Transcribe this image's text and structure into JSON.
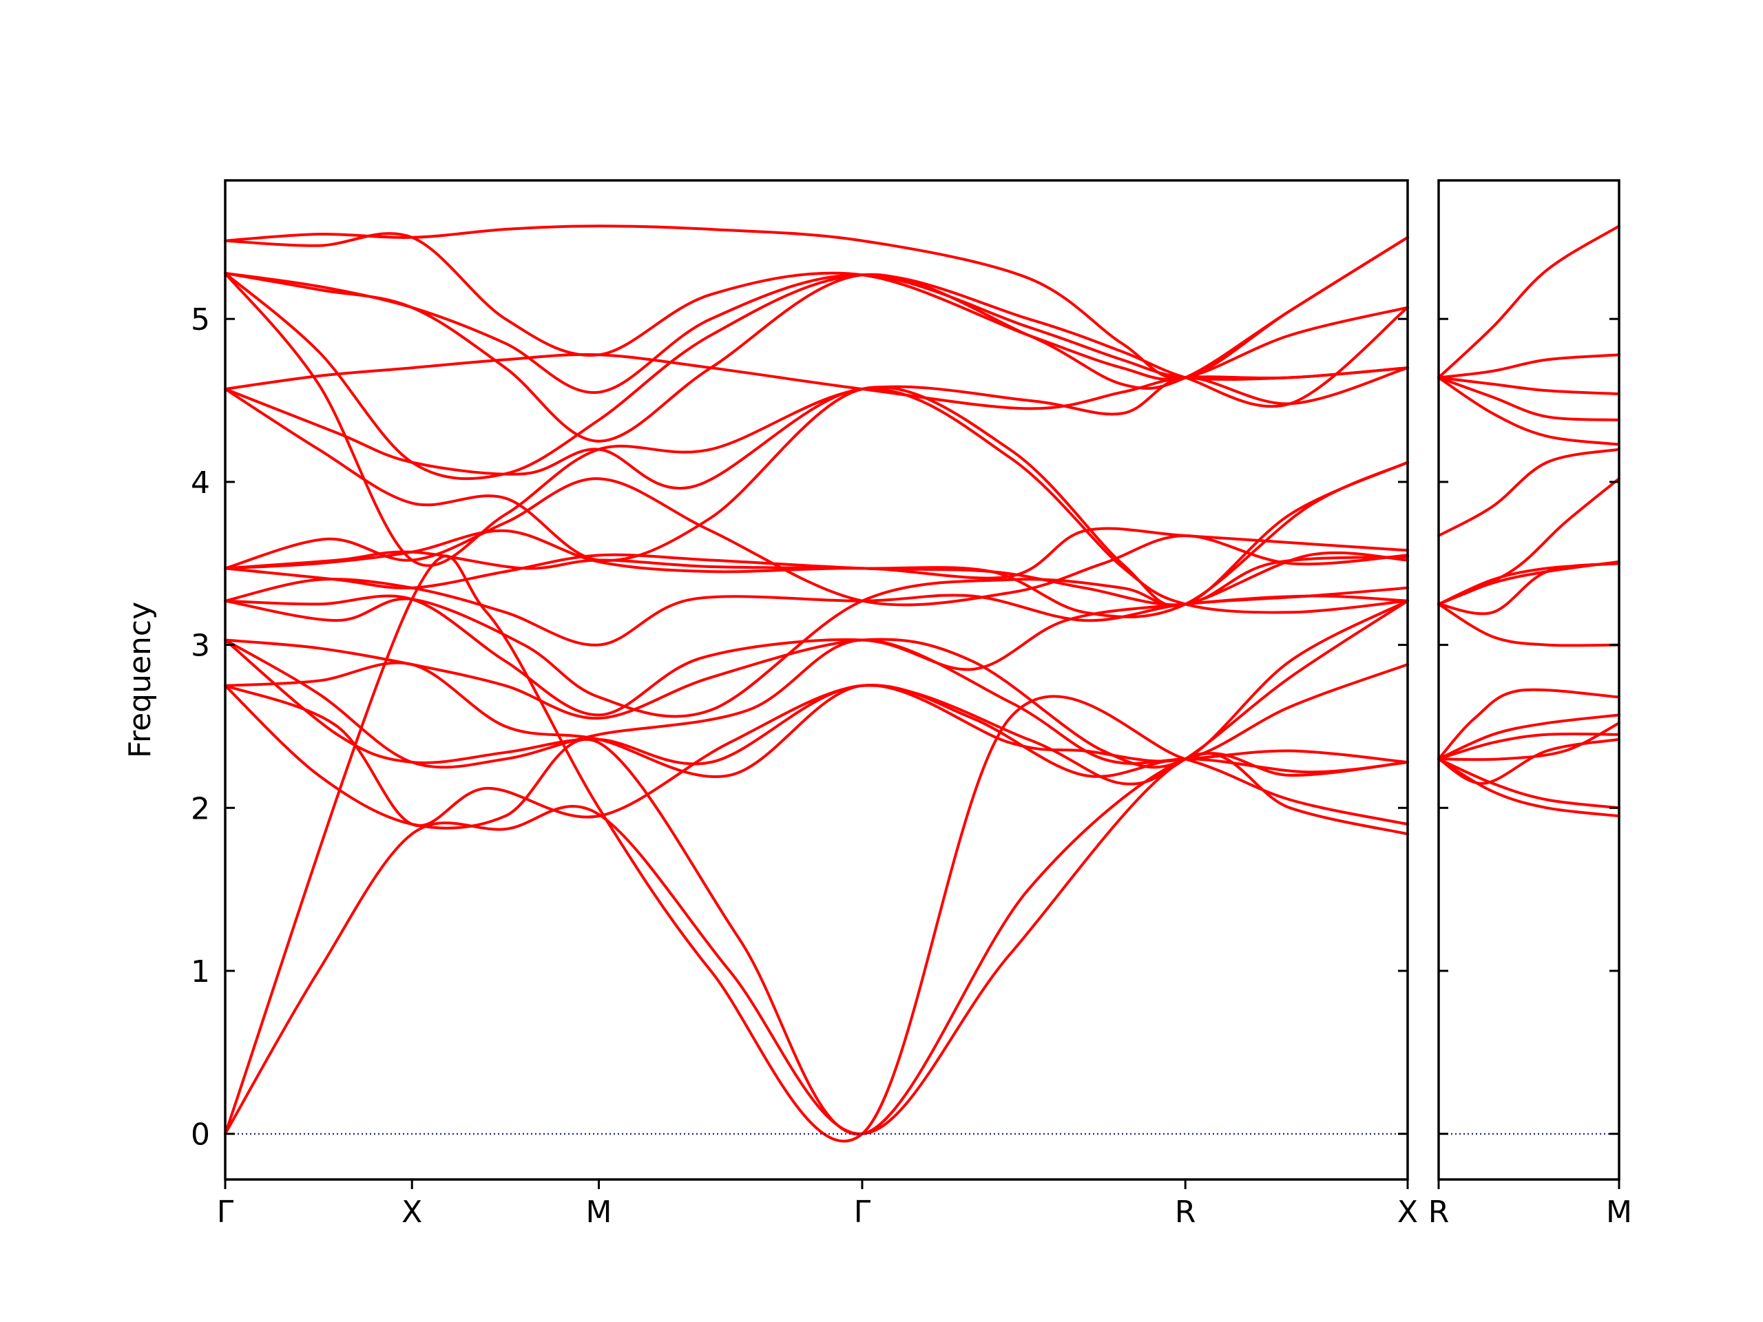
{
  "chart_data": {
    "type": "line",
    "title": "",
    "ylabel": "Frequency",
    "ylim": [
      -0.28,
      5.85
    ],
    "yticks": [
      0,
      1,
      2,
      3,
      4,
      5
    ],
    "grid": false,
    "band_color": "#ff0000",
    "zero_line_color": "#00008b",
    "panels": [
      {
        "x_range": [
          0,
          6.33
        ],
        "labels": [
          {
            "x": 0,
            "text": "Γ"
          },
          {
            "x": 1,
            "text": "X"
          },
          {
            "x": 2,
            "text": "M"
          },
          {
            "x": 3.41,
            "text": "Γ"
          },
          {
            "x": 5.14,
            "text": "R"
          },
          {
            "x": 6.33,
            "text": "X"
          }
        ],
        "series": [
          {
            "x": [
              0,
              0.5,
              1,
              1.5,
              2,
              2.7,
              3.41,
              4.2,
              5.14,
              5.7,
              6.33
            ],
            "y": [
              0,
              1.0,
              1.84,
              1.87,
              1.96,
              1.0,
              0,
              1.1,
              2.3,
              2.0,
              1.84
            ]
          },
          {
            "x": [
              0,
              1,
              1.4,
              2,
              2.6,
              3.41,
              4.2,
              5.14,
              5.7,
              6.33
            ],
            "y": [
              0,
              3.28,
              3.2,
              2.0,
              1.0,
              0,
              2.55,
              2.3,
              2.05,
              1.9
            ]
          },
          {
            "x": [
              0,
              0.5,
              1,
              1.5,
              2,
              2.75,
              3.41,
              4.3,
              5.14,
              5.7,
              6.33
            ],
            "y": [
              2.75,
              2.2,
              1.9,
              1.95,
              2.4,
              1.2,
              0,
              1.5,
              2.3,
              2.2,
              2.28
            ]
          },
          {
            "x": [
              0,
              0.6,
              1,
              1.4,
              2,
              2.7,
              3.41,
              4.0,
              4.6,
              5.14,
              5.8,
              6.33
            ],
            "y": [
              2.75,
              2.5,
              1.9,
              2.12,
              1.95,
              2.4,
              2.75,
              2.55,
              2.2,
              2.3,
              2.22,
              2.28
            ]
          },
          {
            "x": [
              0,
              0.5,
              1,
              1.5,
              2,
              2.7,
              3.41,
              4.2,
              4.6,
              5.14,
              5.7,
              6.33
            ],
            "y": [
              2.75,
              2.78,
              2.88,
              2.5,
              2.42,
              2.2,
              2.75,
              2.4,
              2.35,
              2.3,
              2.62,
              2.88
            ]
          },
          {
            "x": [
              0,
              0.6,
              1,
              1.5,
              2,
              2.6,
              3.41,
              4.3,
              4.8,
              5.14,
              5.7,
              6.33
            ],
            "y": [
              3.03,
              2.45,
              2.28,
              2.34,
              2.42,
              2.28,
              2.75,
              2.42,
              2.15,
              2.3,
              2.8,
              3.27
            ]
          },
          {
            "x": [
              0,
              0.5,
              1,
              1.5,
              2,
              2.8,
              3.41,
              4.2,
              4.7,
              5.14,
              5.7,
              6.33
            ],
            "y": [
              3.03,
              2.7,
              2.28,
              2.3,
              2.45,
              2.6,
              3.03,
              2.65,
              2.3,
              2.3,
              2.35,
              2.28
            ]
          },
          {
            "x": [
              0,
              0.5,
              1,
              1.5,
              2,
              2.6,
              3.41,
              4.0,
              4.7,
              5.14,
              5.7,
              6.33
            ],
            "y": [
              3.03,
              2.98,
              2.88,
              2.75,
              2.55,
              2.8,
              3.03,
              2.9,
              2.35,
              2.3,
              2.9,
              3.27
            ]
          },
          {
            "x": [
              0,
              0.5,
              1,
              1.5,
              2,
              2.55,
              3.41,
              4.0,
              4.5,
              5.14,
              5.8,
              6.33
            ],
            "y": [
              3.27,
              3.25,
              3.28,
              2.9,
              2.57,
              2.92,
              3.03,
              2.85,
              3.15,
              3.25,
              3.3,
              3.27
            ]
          },
          {
            "x": [
              0,
              0.6,
              1,
              1.6,
              2,
              2.6,
              3.41,
              4.2,
              4.8,
              5.14,
              5.8,
              6.33
            ],
            "y": [
              3.27,
              3.15,
              3.28,
              3.0,
              2.68,
              2.6,
              3.27,
              3.4,
              3.35,
              3.25,
              3.55,
              3.52
            ]
          },
          {
            "x": [
              0,
              0.5,
              1,
              1.5,
              2,
              2.5,
              3.41,
              4.0,
              4.6,
              5.14,
              5.8,
              6.33
            ],
            "y": [
              3.27,
              3.4,
              3.35,
              3.2,
              3.0,
              3.28,
              3.27,
              3.3,
              3.15,
              3.25,
              3.3,
              3.35
            ]
          },
          {
            "x": [
              0,
              0.6,
              1,
              1.6,
              2,
              2.6,
              3.41,
              4.1,
              4.6,
              5.14,
              5.8,
              6.33
            ],
            "y": [
              3.47,
              3.52,
              3.57,
              3.47,
              3.52,
              3.48,
              3.47,
              3.45,
              3.2,
              3.25,
              3.85,
              4.12
            ]
          },
          {
            "x": [
              0,
              0.5,
              1,
              1.5,
              2,
              2.6,
              3.41,
              4.2,
              4.6,
              5.14,
              5.8,
              6.33
            ],
            "y": [
              3.47,
              3.5,
              3.57,
              3.7,
              3.51,
              3.45,
              3.47,
              3.42,
              3.7,
              3.67,
              3.62,
              3.58
            ]
          },
          {
            "x": [
              0,
              0.6,
              1,
              1.5,
              2,
              2.6,
              3.41,
              4.1,
              4.6,
              5.14,
              5.6,
              6.33
            ],
            "y": [
              3.47,
              3.4,
              3.35,
              3.45,
              3.55,
              3.52,
              3.47,
              3.45,
              3.35,
              3.25,
              3.5,
              3.54
            ]
          },
          {
            "x": [
              0,
              0.55,
              1,
              1.5,
              2,
              2.6,
              3.41,
              4.2,
              4.7,
              5.14,
              5.7,
              6.33
            ],
            "y": [
              3.47,
              3.65,
              3.52,
              3.75,
              4.02,
              3.7,
              3.27,
              3.32,
              3.5,
              3.67,
              3.5,
              3.55
            ]
          },
          {
            "x": [
              0,
              0.5,
              1,
              1.5,
              2,
              2.6,
              3.41,
              4.2,
              4.8,
              5.14,
              5.7,
              6.33
            ],
            "y": [
              4.57,
              4.2,
              3.87,
              3.9,
              3.52,
              3.78,
              4.57,
              4.2,
              3.5,
              3.25,
              3.8,
              4.12
            ]
          },
          {
            "x": [
              0,
              0.6,
              1,
              1.6,
              2,
              2.5,
              3.41,
              4.2,
              4.8,
              5.14,
              5.7,
              6.33
            ],
            "y": [
              4.57,
              4.3,
              4.12,
              4.05,
              4.2,
              3.97,
              4.57,
              4.15,
              3.48,
              3.25,
              3.2,
              3.27
            ]
          },
          {
            "x": [
              0,
              0.5,
              1,
              1.5,
              2,
              2.6,
              3.41,
              4.3,
              4.8,
              5.14,
              5.7,
              6.33
            ],
            "y": [
              4.57,
              4.65,
              4.7,
              4.75,
              4.78,
              4.7,
              4.57,
              4.45,
              4.55,
              4.64,
              4.64,
              4.7
            ]
          },
          {
            "x": [
              0,
              0.5,
              1,
              1.5,
              2,
              2.6,
              3.41,
              4.3,
              4.8,
              5.14,
              5.7,
              6.33
            ],
            "y": [
              5.28,
              4.6,
              3.52,
              3.8,
              4.2,
              4.2,
              4.57,
              4.5,
              4.42,
              4.64,
              4.48,
              4.7
            ]
          },
          {
            "x": [
              0,
              0.5,
              1,
              1.5,
              2,
              2.6,
              3.41,
              4.3,
              4.8,
              5.14,
              5.7,
              6.33
            ],
            "y": [
              5.28,
              4.8,
              4.12,
              4.05,
              4.38,
              4.9,
              5.27,
              5.0,
              4.8,
              4.64,
              4.48,
              5.07
            ]
          },
          {
            "x": [
              0,
              0.5,
              1,
              1.5,
              2,
              2.6,
              3.41,
              4.3,
              4.8,
              5.14,
              5.7,
              6.33
            ],
            "y": [
              5.28,
              5.18,
              5.07,
              4.7,
              4.25,
              4.7,
              5.27,
              4.9,
              4.6,
              4.64,
              5.05,
              5.5
            ]
          },
          {
            "x": [
              0,
              0.5,
              1,
              1.5,
              2,
              2.6,
              3.41,
              4.3,
              4.8,
              5.14,
              5.7,
              6.33
            ],
            "y": [
              5.28,
              5.2,
              5.07,
              4.85,
              4.55,
              5.0,
              5.27,
              4.95,
              4.75,
              4.64,
              4.64,
              4.7
            ]
          },
          {
            "x": [
              0,
              0.5,
              1,
              1.5,
              2,
              2.6,
              3.41,
              4.3,
              4.8,
              5.14,
              5.7,
              6.33
            ],
            "y": [
              5.48,
              5.45,
              5.5,
              5.0,
              4.78,
              5.15,
              5.27,
              4.9,
              4.7,
              4.64,
              4.9,
              5.07
            ]
          },
          {
            "x": [
              0,
              0.5,
              1,
              1.5,
              2,
              2.6,
              3.41,
              4.3,
              4.8,
              5.14,
              5.7,
              6.33
            ],
            "y": [
              5.48,
              5.52,
              5.5,
              5.55,
              5.57,
              5.55,
              5.48,
              5.25,
              4.85,
              4.64,
              5.05,
              5.5
            ]
          }
        ]
      },
      {
        "x_range": [
          0,
          1
        ],
        "labels": [
          {
            "x": 0,
            "text": "R"
          },
          {
            "x": 1,
            "text": "M"
          }
        ],
        "series": [
          {
            "x": [
              0,
              0.3,
              0.6,
              1
            ],
            "y": [
              2.3,
              2.1,
              2.0,
              1.95
            ]
          },
          {
            "x": [
              0,
              0.3,
              0.6,
              1
            ],
            "y": [
              2.3,
              2.15,
              2.05,
              2.0
            ]
          },
          {
            "x": [
              0,
              0.25,
              0.6,
              1
            ],
            "y": [
              2.3,
              2.15,
              2.35,
              2.42
            ]
          },
          {
            "x": [
              0,
              0.35,
              0.7,
              1
            ],
            "y": [
              2.3,
              2.3,
              2.35,
              2.52
            ]
          },
          {
            "x": [
              0,
              0.3,
              0.6,
              1
            ],
            "y": [
              2.3,
              2.4,
              2.45,
              2.45
            ]
          },
          {
            "x": [
              0,
              0.3,
              0.6,
              1
            ],
            "y": [
              2.3,
              2.45,
              2.52,
              2.57
            ]
          },
          {
            "x": [
              0,
              0.2,
              0.45,
              1
            ],
            "y": [
              2.3,
              2.55,
              2.72,
              2.68
            ]
          },
          {
            "x": [
              0,
              0.3,
              0.6,
              1
            ],
            "y": [
              3.25,
              3.05,
              3.0,
              3.0
            ]
          },
          {
            "x": [
              0,
              0.3,
              0.6,
              1
            ],
            "y": [
              3.25,
              3.2,
              3.45,
              3.5
            ]
          },
          {
            "x": [
              0,
              0.3,
              0.6,
              1
            ],
            "y": [
              3.25,
              3.4,
              3.47,
              3.5
            ]
          },
          {
            "x": [
              0,
              0.3,
              0.6,
              1
            ],
            "y": [
              3.25,
              3.38,
              3.45,
              3.51
            ]
          },
          {
            "x": [
              0,
              0.4,
              0.7,
              1
            ],
            "y": [
              3.25,
              3.45,
              3.75,
              4.02
            ]
          },
          {
            "x": [
              0,
              0.3,
              0.6,
              1
            ],
            "y": [
              3.67,
              3.85,
              4.12,
              4.2
            ]
          },
          {
            "x": [
              0,
              0.3,
              0.6,
              1
            ],
            "y": [
              4.64,
              4.42,
              4.28,
              4.23
            ]
          },
          {
            "x": [
              0,
              0.3,
              0.6,
              1
            ],
            "y": [
              4.64,
              4.52,
              4.4,
              4.38
            ]
          },
          {
            "x": [
              0,
              0.3,
              0.6,
              1
            ],
            "y": [
              4.64,
              4.6,
              4.56,
              4.54
            ]
          },
          {
            "x": [
              0,
              0.3,
              0.6,
              1
            ],
            "y": [
              4.64,
              4.68,
              4.75,
              4.78
            ]
          },
          {
            "x": [
              0,
              0.3,
              0.6,
              1
            ],
            "y": [
              4.64,
              4.95,
              5.3,
              5.57
            ]
          }
        ]
      }
    ]
  }
}
